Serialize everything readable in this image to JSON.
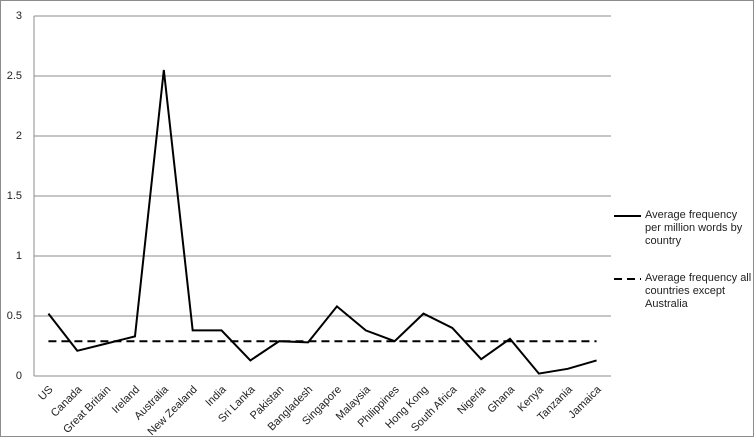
{
  "chart_data": {
    "type": "line",
    "categories": [
      "US",
      "Canada",
      "Great Britain",
      "Ireland",
      "Australia",
      "New Zealand",
      "India",
      "Sri Lanka",
      "Pakistan",
      "Bangladesh",
      "Singapore",
      "Malaysia",
      "Philippines",
      "Hong Kong",
      "South Africa",
      "Nigeria",
      "Ghana",
      "Kenya",
      "Tanzania",
      "Jamaica"
    ],
    "series": [
      {
        "name": "Average frequency per million words by country",
        "color": "#000000",
        "dash": "solid",
        "values": [
          0.52,
          0.21,
          0.27,
          0.33,
          2.55,
          0.38,
          0.38,
          0.13,
          0.29,
          0.28,
          0.58,
          0.38,
          0.29,
          0.52,
          0.4,
          0.14,
          0.31,
          0.02,
          0.06,
          0.13
        ]
      },
      {
        "name": "Average frequency all countries except Australia",
        "color": "#000000",
        "dash": "dashed",
        "values": [
          0.29,
          0.29,
          0.29,
          0.29,
          0.29,
          0.29,
          0.29,
          0.29,
          0.29,
          0.29,
          0.29,
          0.29,
          0.29,
          0.29,
          0.29,
          0.29,
          0.29,
          0.29,
          0.29,
          0.29
        ]
      }
    ],
    "ylim": [
      0,
      3
    ],
    "yticks": [
      0,
      0.5,
      1,
      1.5,
      2,
      2.5,
      3
    ],
    "grid": true,
    "legend": "right"
  }
}
